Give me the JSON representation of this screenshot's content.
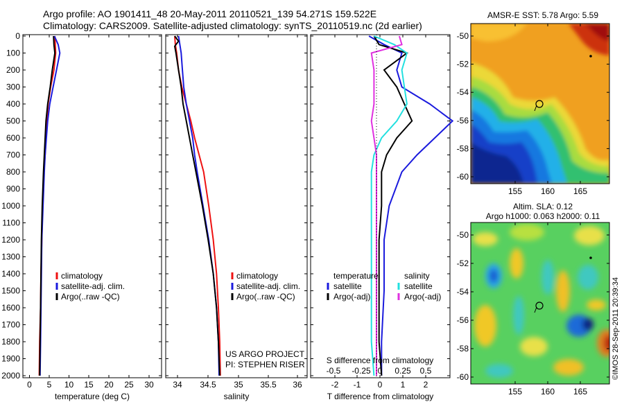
{
  "header": {
    "line1": "Argo profile: AO 1901411_48 20-May-2011 20110521_139 54.271S 159.522E",
    "line2": "Climatology: CARS2009. Satellite-adjusted climatology: synTS_20110519.nc (2d earlier)"
  },
  "colors": {
    "red": "#ee1111",
    "blue": "#1a1add",
    "black": "#000000",
    "cyan": "#22e0e0",
    "magenta": "#e030e0"
  },
  "depth_ticks": [
    "0",
    "100",
    "200",
    "300",
    "400",
    "500",
    "600",
    "700",
    "800",
    "900",
    "1000",
    "1100",
    "1200",
    "1300",
    "1400",
    "1500",
    "1600",
    "1700",
    "1800",
    "1900",
    "2000"
  ],
  "chart_data": [
    {
      "type": "line",
      "name_id": "temperature-profile",
      "xlabel": "temperature (deg C)",
      "xticks": [
        "0",
        "5",
        "10",
        "15",
        "20",
        "25",
        "30"
      ],
      "xlim": [
        -2,
        31
      ],
      "ylim": [
        2050,
        0
      ],
      "legend": [
        "climatology",
        "satellite-adj. clim.",
        "Argo(..raw -QC)"
      ],
      "series": [
        {
          "name": "climatology",
          "color": "red",
          "points": [
            [
              5.6,
              0
            ],
            [
              5.7,
              50
            ],
            [
              5.8,
              100
            ],
            [
              5.4,
              200
            ],
            [
              4.6,
              300
            ],
            [
              4.0,
              400
            ],
            [
              3.7,
              500
            ],
            [
              3.5,
              600
            ],
            [
              3.3,
              700
            ],
            [
              3.0,
              800
            ],
            [
              2.7,
              1000
            ],
            [
              2.5,
              1200
            ],
            [
              2.3,
              1400
            ],
            [
              2.2,
              1600
            ],
            [
              2.0,
              1800
            ],
            [
              1.9,
              2000
            ]
          ]
        },
        {
          "name": "satellite-adj. clim.",
          "color": "blue",
          "points": [
            [
              5.5,
              0
            ],
            [
              6.4,
              50
            ],
            [
              6.8,
              100
            ],
            [
              6.0,
              200
            ],
            [
              5.2,
              300
            ],
            [
              4.4,
              400
            ],
            [
              3.9,
              500
            ],
            [
              3.6,
              600
            ],
            [
              3.3,
              700
            ],
            [
              3.1,
              800
            ],
            [
              2.8,
              1000
            ],
            [
              2.5,
              1200
            ],
            [
              2.4,
              1400
            ],
            [
              2.3,
              1600
            ],
            [
              2.2,
              1800
            ],
            [
              2.1,
              2000
            ]
          ]
        },
        {
          "name": "Argo(..raw -QC)",
          "color": "black",
          "points": [
            [
              5.3,
              0
            ],
            [
              5.4,
              50
            ],
            [
              5.6,
              100
            ],
            [
              5.0,
              200
            ],
            [
              4.5,
              300
            ],
            [
              3.9,
              400
            ],
            [
              3.5,
              500
            ],
            [
              3.3,
              600
            ],
            [
              3.1,
              700
            ],
            [
              2.9,
              800
            ],
            [
              2.6,
              1000
            ],
            [
              2.4,
              1200
            ],
            [
              2.3,
              1400
            ],
            [
              2.2,
              1600
            ],
            [
              2.1,
              1800
            ],
            [
              2.0,
              2000
            ]
          ]
        }
      ]
    },
    {
      "type": "line",
      "name_id": "salinity-profile",
      "xlabel": "salinity",
      "xticks": [
        "34",
        "34.5",
        "35",
        "35.5",
        "36"
      ],
      "xlim": [
        33.88,
        36.08
      ],
      "ylim": [
        2050,
        0
      ],
      "legend": [
        "climatology",
        "satellite-adj. clim.",
        "Argo(..raw -QC)"
      ],
      "series": [
        {
          "name": "climatology",
          "color": "red",
          "points": [
            [
              34.02,
              0
            ],
            [
              34.03,
              50
            ],
            [
              34.05,
              100
            ],
            [
              34.08,
              200
            ],
            [
              34.13,
              300
            ],
            [
              34.2,
              400
            ],
            [
              34.27,
              500
            ],
            [
              34.33,
              600
            ],
            [
              34.4,
              700
            ],
            [
              34.47,
              800
            ],
            [
              34.55,
              1000
            ],
            [
              34.62,
              1200
            ],
            [
              34.67,
              1400
            ],
            [
              34.7,
              1600
            ],
            [
              34.72,
              1800
            ],
            [
              34.73,
              2000
            ]
          ]
        },
        {
          "name": "satellite-adj. clim.",
          "color": "blue",
          "points": [
            [
              34.08,
              0
            ],
            [
              34.1,
              50
            ],
            [
              34.12,
              100
            ],
            [
              34.14,
              200
            ],
            [
              34.16,
              300
            ],
            [
              34.2,
              400
            ],
            [
              34.25,
              500
            ],
            [
              34.3,
              600
            ],
            [
              34.33,
              700
            ],
            [
              34.37,
              800
            ],
            [
              34.46,
              1000
            ],
            [
              34.55,
              1200
            ],
            [
              34.62,
              1400
            ],
            [
              34.67,
              1600
            ],
            [
              34.7,
              1800
            ],
            [
              34.71,
              2000
            ]
          ]
        },
        {
          "name": "Argo(..raw -QC)",
          "color": "black",
          "points": [
            [
              34.02,
              0
            ],
            [
              34.08,
              30
            ],
            [
              34.02,
              60
            ],
            [
              34.04,
              100
            ],
            [
              34.08,
              200
            ],
            [
              34.12,
              300
            ],
            [
              34.15,
              400
            ],
            [
              34.2,
              500
            ],
            [
              34.25,
              600
            ],
            [
              34.3,
              700
            ],
            [
              34.35,
              800
            ],
            [
              34.45,
              1000
            ],
            [
              34.54,
              1200
            ],
            [
              34.62,
              1400
            ],
            [
              34.67,
              1600
            ],
            [
              34.7,
              1800
            ],
            [
              34.72,
              2000
            ]
          ]
        }
      ]
    },
    {
      "type": "line",
      "name_id": "difference-profile",
      "xlabel": "T difference from climatology",
      "xlabel2": "S difference from climatology",
      "xticks": [
        "-2",
        "-1",
        "0",
        "1",
        "2"
      ],
      "xticks_s": [
        "-0.5",
        "-0.25",
        "0",
        "0.25",
        "0.5"
      ],
      "xlim": [
        -2.6,
        2.9
      ],
      "ylim": [
        2050,
        0
      ],
      "legend_t_header": "temperature",
      "legend_s_header": "salinity",
      "legend_t": [
        "satellite",
        "Argo(-adj)"
      ],
      "legend_s": [
        "satellite",
        "Argo(-adj)"
      ],
      "series": [
        {
          "name": "temperature satellite",
          "color": "blue",
          "points": [
            [
              -0.3,
              0
            ],
            [
              0.3,
              50
            ],
            [
              1.0,
              100
            ],
            [
              0.8,
              200
            ],
            [
              1.0,
              300
            ],
            [
              2.1,
              400
            ],
            [
              3.0,
              500
            ],
            [
              2.3,
              600
            ],
            [
              1.6,
              700
            ],
            [
              1.0,
              800
            ],
            [
              0.5,
              1000
            ],
            [
              0.3,
              1200
            ],
            [
              0.3,
              1500
            ],
            [
              0.2,
              1800
            ],
            [
              0.2,
              2000
            ]
          ]
        },
        {
          "name": "temperature Argo(-adj)",
          "color": "black",
          "points": [
            [
              -0.1,
              0
            ],
            [
              0.1,
              50
            ],
            [
              1.2,
              100
            ],
            [
              0.3,
              200
            ],
            [
              0.8,
              300
            ],
            [
              1.1,
              400
            ],
            [
              1.4,
              500
            ],
            [
              0.8,
              600
            ],
            [
              0.4,
              700
            ],
            [
              0.2,
              800
            ],
            [
              0.2,
              1000
            ],
            [
              0.1,
              1200
            ],
            [
              0.1,
              1500
            ],
            [
              0.1,
              1800
            ],
            [
              0.2,
              2000
            ]
          ]
        },
        {
          "name": "salinity satellite",
          "color": "cyan",
          "points": [
            [
              -0.1,
              0
            ],
            [
              0.7,
              50
            ],
            [
              1.2,
              100
            ],
            [
              1.0,
              200
            ],
            [
              1.1,
              300
            ],
            [
              1.2,
              400
            ],
            [
              0.8,
              500
            ],
            [
              0.2,
              600
            ],
            [
              -0.1,
              700
            ],
            [
              -0.2,
              800
            ],
            [
              -0.2,
              1000
            ],
            [
              -0.2,
              1200
            ],
            [
              -0.2,
              1500
            ],
            [
              -0.2,
              1800
            ],
            [
              -0.1,
              2000
            ]
          ]
        },
        {
          "name": "salinity Argo(-adj)",
          "color": "magenta",
          "points": [
            [
              0.9,
              0
            ],
            [
              1.0,
              50
            ],
            [
              -0.2,
              100
            ],
            [
              -0.1,
              200
            ],
            [
              -0.1,
              300
            ],
            [
              -0.1,
              400
            ],
            [
              -0.2,
              500
            ],
            [
              -0.1,
              600
            ],
            [
              0,
              700
            ],
            [
              0,
              800
            ],
            [
              0,
              1000
            ],
            [
              0,
              1200
            ],
            [
              0,
              1500
            ],
            [
              0,
              1800
            ],
            [
              0,
              2000
            ]
          ]
        }
      ]
    }
  ],
  "footer": {
    "project": "US ARGO PROJECT",
    "pi": "PI: STEPHEN RISER"
  },
  "maps": {
    "sst": {
      "title": "AMSR-E SST: 5.78 Argo: 5.59",
      "yticks": [
        "-50",
        "-52",
        "-54",
        "-56",
        "-58",
        "-60"
      ],
      "xticks": [
        "155",
        "160",
        "165"
      ]
    },
    "sla": {
      "title1": "Altim. SLA: 0.12",
      "title2": "Argo h1000: 0.063 h2000: 0.11",
      "yticks": [
        "-50",
        "-52",
        "-54",
        "-56",
        "-58",
        "-60"
      ],
      "xticks": [
        "155",
        "160",
        "165"
      ]
    }
  },
  "credit": "©IMOS 28-Sep-2011 20:39:34"
}
